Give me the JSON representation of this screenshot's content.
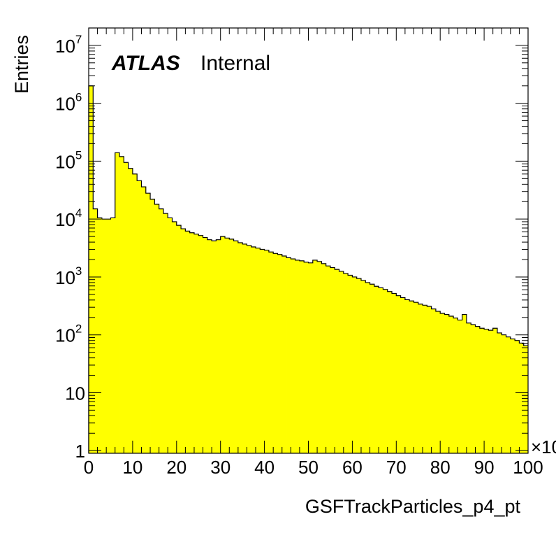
{
  "chart_data": {
    "type": "bar",
    "style": "histogram-step",
    "fill_color": "#ffff00",
    "line_color": "#000000",
    "xlabel": "GSFTrackParticles_p4_pt",
    "ylabel": "Entries",
    "x_multiplier_label": "×10",
    "xlim": [
      0,
      100
    ],
    "ylim": [
      0.9,
      20000000
    ],
    "yscale": "log",
    "grid": false,
    "legend": "none",
    "x_ticks": [
      0,
      10,
      20,
      30,
      40,
      50,
      60,
      70,
      80,
      90,
      100
    ],
    "x_tick_labels": [
      "0",
      "10",
      "20",
      "30",
      "40",
      "50",
      "60",
      "70",
      "80",
      "90",
      "100"
    ],
    "y_ticks": [
      {
        "value": 1,
        "base": "1",
        "exp": ""
      },
      {
        "value": 10,
        "base": "10",
        "exp": ""
      },
      {
        "value": 100,
        "base": "10",
        "exp": "2"
      },
      {
        "value": 1000,
        "base": "10",
        "exp": "3"
      },
      {
        "value": 10000,
        "base": "10",
        "exp": "4"
      },
      {
        "value": 100000,
        "base": "10",
        "exp": "5"
      },
      {
        "value": 1000000,
        "base": "10",
        "exp": "6"
      },
      {
        "value": 10000000,
        "base": "10",
        "exp": "7"
      }
    ],
    "bin_width": 1,
    "bin_edges_start": 0,
    "values": [
      2000000,
      15000,
      10500,
      10000,
      10000,
      10500,
      140000,
      120000,
      95000,
      75000,
      60000,
      46000,
      36000,
      28000,
      22000,
      18000,
      15000,
      12500,
      10500,
      9000,
      7800,
      6800,
      6200,
      5800,
      5500,
      5200,
      4800,
      4400,
      4200,
      4400,
      5000,
      4700,
      4500,
      4200,
      3900,
      3700,
      3500,
      3300,
      3150,
      3000,
      2900,
      2700,
      2550,
      2450,
      2300,
      2150,
      2050,
      1950,
      1900,
      1800,
      1750,
      1950,
      1850,
      1700,
      1550,
      1450,
      1350,
      1250,
      1150,
      1070,
      1000,
      940,
      870,
      800,
      750,
      690,
      650,
      610,
      560,
      520,
      475,
      440,
      405,
      385,
      365,
      340,
      325,
      310,
      280,
      255,
      235,
      225,
      210,
      195,
      180,
      225,
      160,
      150,
      140,
      130,
      125,
      120,
      130,
      108,
      100,
      92,
      85,
      80,
      72,
      65
    ]
  },
  "annotation": {
    "atlas": "ATLAS",
    "status": "Internal"
  }
}
